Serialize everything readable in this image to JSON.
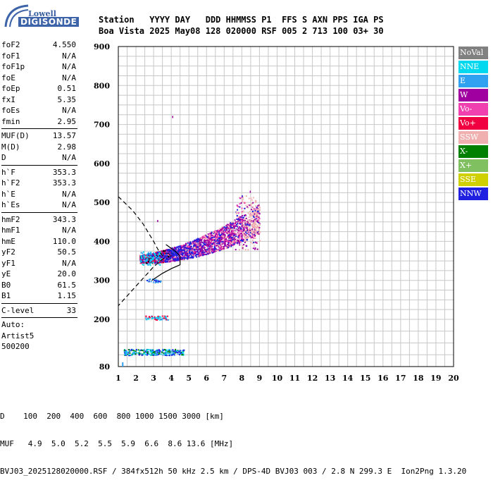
{
  "logo": {
    "line1": "Lowell",
    "line2": "DIGISONDE"
  },
  "header": {
    "line1": "Station   YYYY DAY   DDD HHMMSS P1  FFS S AXN PPS IGA PS",
    "line2": "Boa Vista 2025 May08 128 020000 RSF 005 2 713 100 03+ 30"
  },
  "params": {
    "group1": [
      {
        "label": "foF2",
        "value": "4.550"
      },
      {
        "label": "foF1",
        "value": "N/A"
      },
      {
        "label": "foF1p",
        "value": "N/A"
      },
      {
        "label": "foE",
        "value": "N/A"
      },
      {
        "label": "foEp",
        "value": "0.51"
      },
      {
        "label": "fxI",
        "value": "5.35"
      },
      {
        "label": "foEs",
        "value": "N/A"
      },
      {
        "label": "fmin",
        "value": "2.95"
      }
    ],
    "group2": [
      {
        "label": "MUF(D)",
        "value": "13.57"
      },
      {
        "label": "M(D)",
        "value": "2.98"
      },
      {
        "label": "D",
        "value": "N/A"
      }
    ],
    "group3": [
      {
        "label": "h`F",
        "value": "353.3"
      },
      {
        "label": "h`F2",
        "value": "353.3"
      },
      {
        "label": "h`E",
        "value": "N/A"
      },
      {
        "label": "h`Es",
        "value": "N/A"
      }
    ],
    "group4": [
      {
        "label": "hmF2",
        "value": "343.3"
      },
      {
        "label": "hmF1",
        "value": "N/A"
      },
      {
        "label": "hmE",
        "value": "110.0"
      },
      {
        "label": "yF2",
        "value": "50.5"
      },
      {
        "label": "yF1",
        "value": "N/A"
      },
      {
        "label": "yE",
        "value": "20.0"
      },
      {
        "label": "B0",
        "value": "61.5"
      },
      {
        "label": "B1",
        "value": "1.15"
      }
    ],
    "group5": [
      {
        "label": "C-level",
        "value": "33"
      }
    ],
    "extra": [
      "Auto:",
      "Artist5",
      "500200"
    ]
  },
  "legend": [
    {
      "label": "NoVal",
      "color": "#808080"
    },
    {
      "label": "NNE",
      "color": "#00d8f0"
    },
    {
      "label": "E",
      "color": "#30a0f0"
    },
    {
      "label": "W",
      "color": "#a000a0"
    },
    {
      "label": "Vo-",
      "color": "#f040b0"
    },
    {
      "label": "Vo+",
      "color": "#f00040"
    },
    {
      "label": "SSW",
      "color": "#f0b0b0"
    },
    {
      "label": "X-",
      "color": "#008000"
    },
    {
      "label": "X+",
      "color": "#80c060"
    },
    {
      "label": "SSE",
      "color": "#d0d000"
    },
    {
      "label": "NNW",
      "color": "#2020e0"
    }
  ],
  "footer": {
    "line1": "D    100  200  400  600  800 1000 1500 3000 [km]",
    "line2": "MUF   4.9  5.0  5.2  5.5  5.9  6.6  8.6 13.6 [MHz]",
    "line3": "BVJ03_2025128020000.RSF / 384fx512h 50 kHz 2.5 km / DPS-4D BVJ03 003 / 2.8 N 299.3 E  Ion2Png 1.3.20"
  },
  "chart_data": {
    "type": "scatter",
    "x_ticks": [
      1,
      2,
      3,
      4,
      5,
      6,
      7,
      8,
      9,
      10,
      11,
      12,
      13,
      14,
      15,
      16,
      17,
      18,
      19,
      20
    ],
    "y_ticks": [
      80,
      200,
      300,
      400,
      500,
      600,
      700,
      800,
      900
    ],
    "xlim": [
      1,
      20
    ],
    "ylim_labels": [
      "80",
      "900"
    ],
    "grid": true,
    "legend_position": "right",
    "profile_dashed": [
      [
        1.0,
        515
      ],
      [
        1.8,
        480
      ],
      [
        2.4,
        445
      ],
      [
        3.0,
        400
      ],
      [
        3.3,
        375
      ],
      [
        3.6,
        358
      ],
      [
        3.0,
        335
      ],
      [
        2.4,
        305
      ],
      [
        1.8,
        275
      ],
      [
        1.2,
        245
      ],
      [
        1.0,
        235
      ]
    ],
    "profile_solid": [
      [
        2.9,
        300
      ],
      [
        3.5,
        318
      ],
      [
        4.0,
        330
      ],
      [
        4.5,
        340
      ],
      [
        4.5,
        362
      ],
      [
        4.3,
        372
      ],
      [
        4.0,
        382
      ],
      [
        3.7,
        392
      ]
    ],
    "clusters": [
      {
        "mode": "F2-O",
        "x": [
          2.2,
          9.0
        ],
        "y": [
          330,
          520
        ],
        "colors": [
          "#a000a0",
          "#2020e0",
          "#f040b0",
          "#f0b0b0",
          "#a000a0"
        ]
      },
      {
        "mode": "F-low",
        "x": [
          2.2,
          3.4
        ],
        "y": [
          340,
          375
        ],
        "colors": [
          "#00d8f0",
          "#30a0f0"
        ]
      },
      {
        "mode": "F2-2hop",
        "x": [
          2.6,
          3.4
        ],
        "y": [
          295,
          305
        ],
        "colors": [
          "#30a0f0",
          "#2020e0"
        ]
      },
      {
        "mode": "Es",
        "x": [
          2.5,
          3.8
        ],
        "y": [
          200,
          210
        ],
        "colors": [
          "#f00040",
          "#30a0f0",
          "#00d8f0"
        ]
      },
      {
        "mode": "E-low",
        "x": [
          1.3,
          4.7
        ],
        "y": [
          110,
          125
        ],
        "colors": [
          "#00d8f0",
          "#30a0f0",
          "#008000",
          "#2020e0"
        ]
      }
    ]
  }
}
